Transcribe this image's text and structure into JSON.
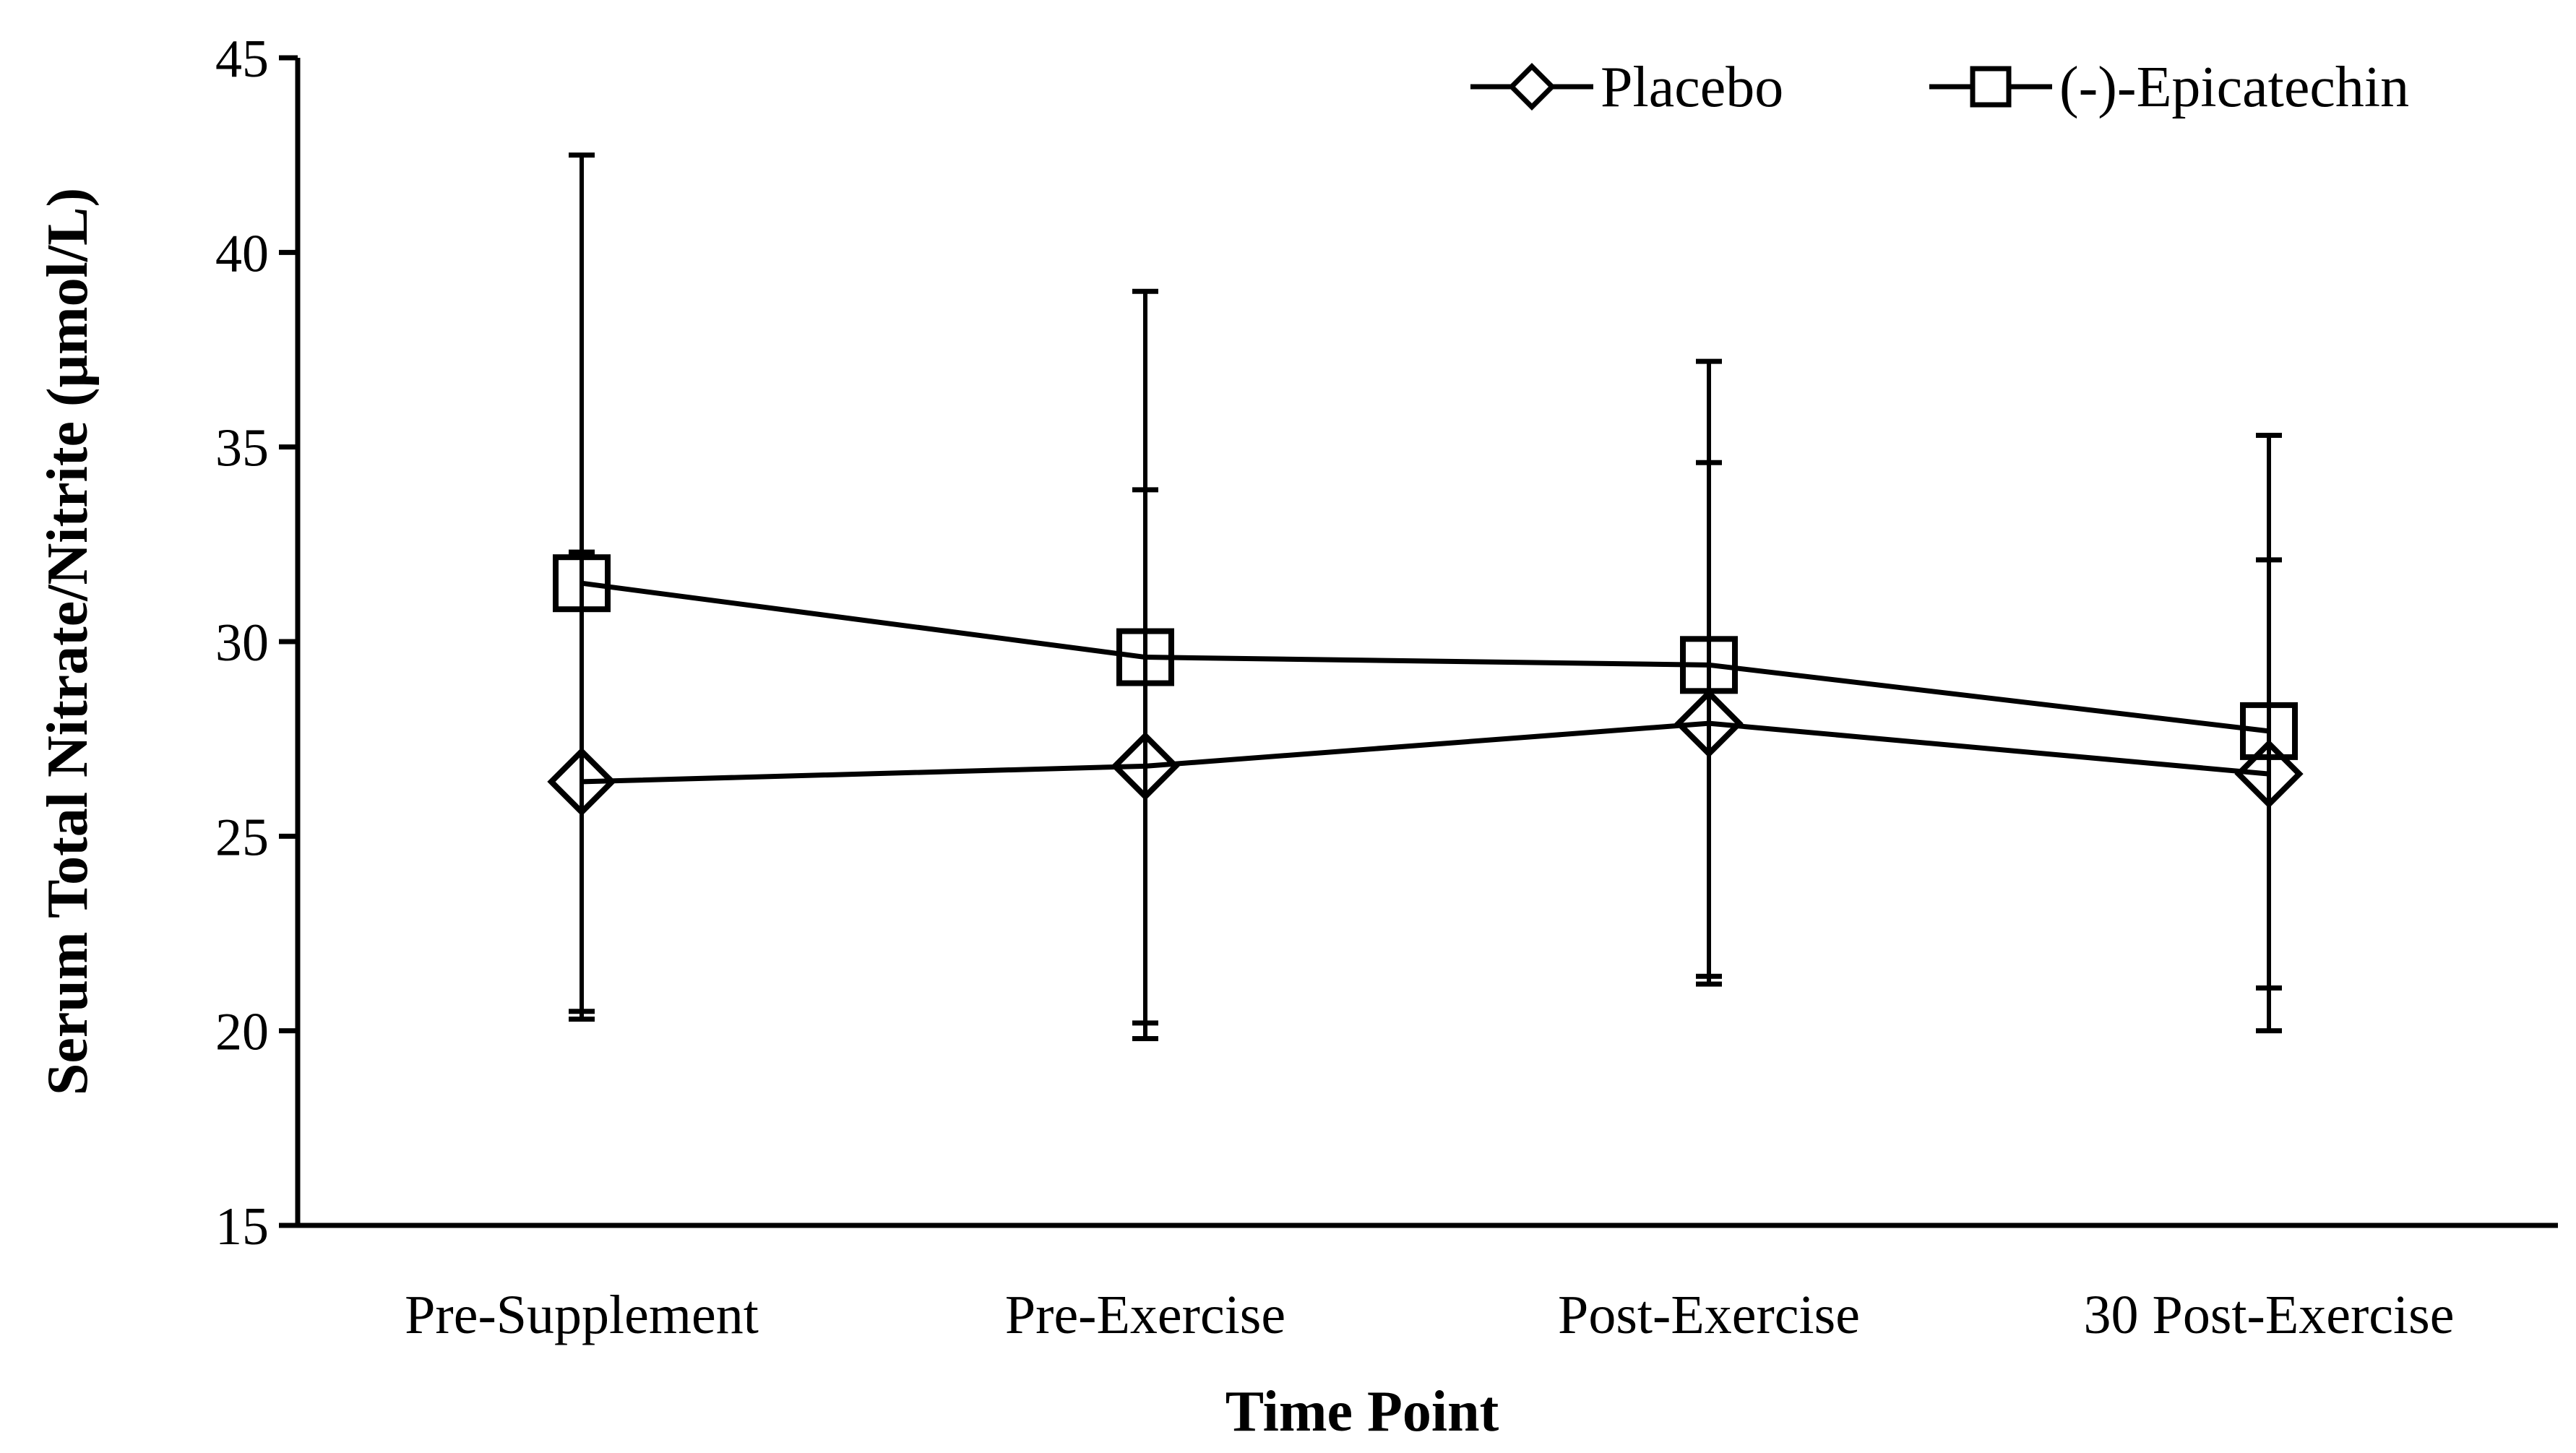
{
  "chart_data": {
    "type": "line",
    "title": "",
    "xlabel": "Time Point",
    "ylabel": "Serum Total Nitrate/Nitrite (μmol/L)",
    "categories": [
      "Pre-Supplement",
      "Pre-Exercise",
      "Post-Exercise",
      "30 Post-Exercise"
    ],
    "ylim": [
      15,
      45
    ],
    "yticks": [
      "15",
      "20",
      "25",
      "30",
      "35",
      "40",
      "45"
    ],
    "legend_position": "top-right",
    "series": [
      {
        "name": "Placebo",
        "marker": "diamond",
        "values": [
          26.4,
          26.8,
          27.9,
          26.6
        ],
        "error_low": [
          20.3,
          19.8,
          21.2,
          20.0
        ],
        "error_high": [
          32.3,
          33.9,
          34.6,
          32.1
        ]
      },
      {
        "name": "(-)-Epicatechin",
        "marker": "square",
        "values": [
          31.5,
          29.6,
          29.4,
          27.7
        ],
        "error_low": [
          20.5,
          20.2,
          21.4,
          21.1
        ],
        "error_high": [
          42.5,
          39.0,
          37.2,
          35.3
        ]
      }
    ]
  }
}
